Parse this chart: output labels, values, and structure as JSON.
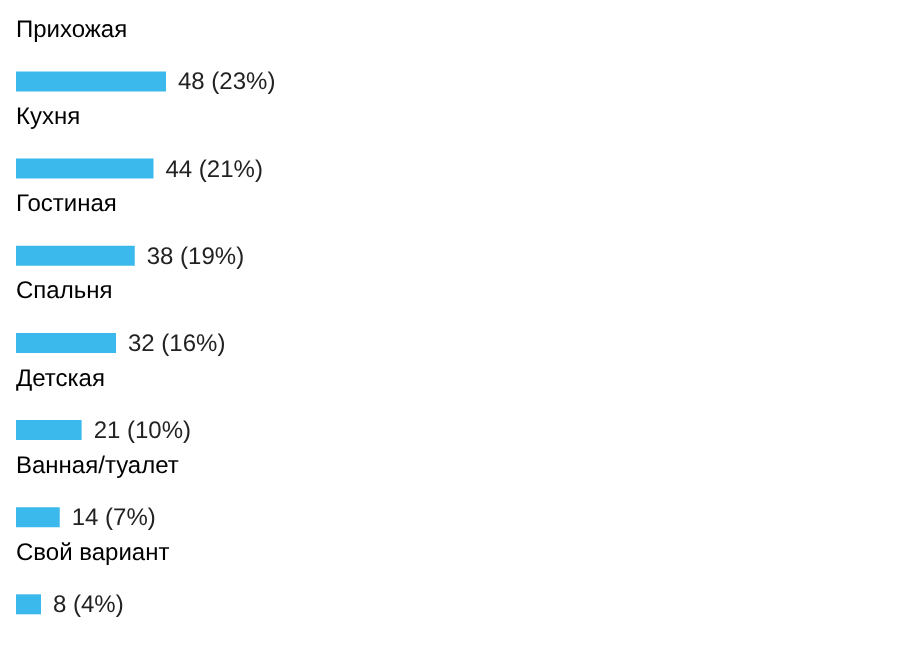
{
  "chart_data": {
    "type": "bar",
    "orientation": "horizontal",
    "categories": [
      "Прихожая",
      "Кухня",
      "Гостиная",
      "Спальня",
      "Детская",
      "Ванная/туалет",
      "Свой вариант"
    ],
    "values": [
      48,
      44,
      38,
      32,
      21,
      14,
      8
    ],
    "color": "#3cb9ec",
    "value_labels": [
      "48 (23%)",
      "44 (21%)",
      "38 (19%)",
      "32 (16%)",
      "21 (10%)",
      "14 (7%)",
      "8 (4%)"
    ]
  }
}
